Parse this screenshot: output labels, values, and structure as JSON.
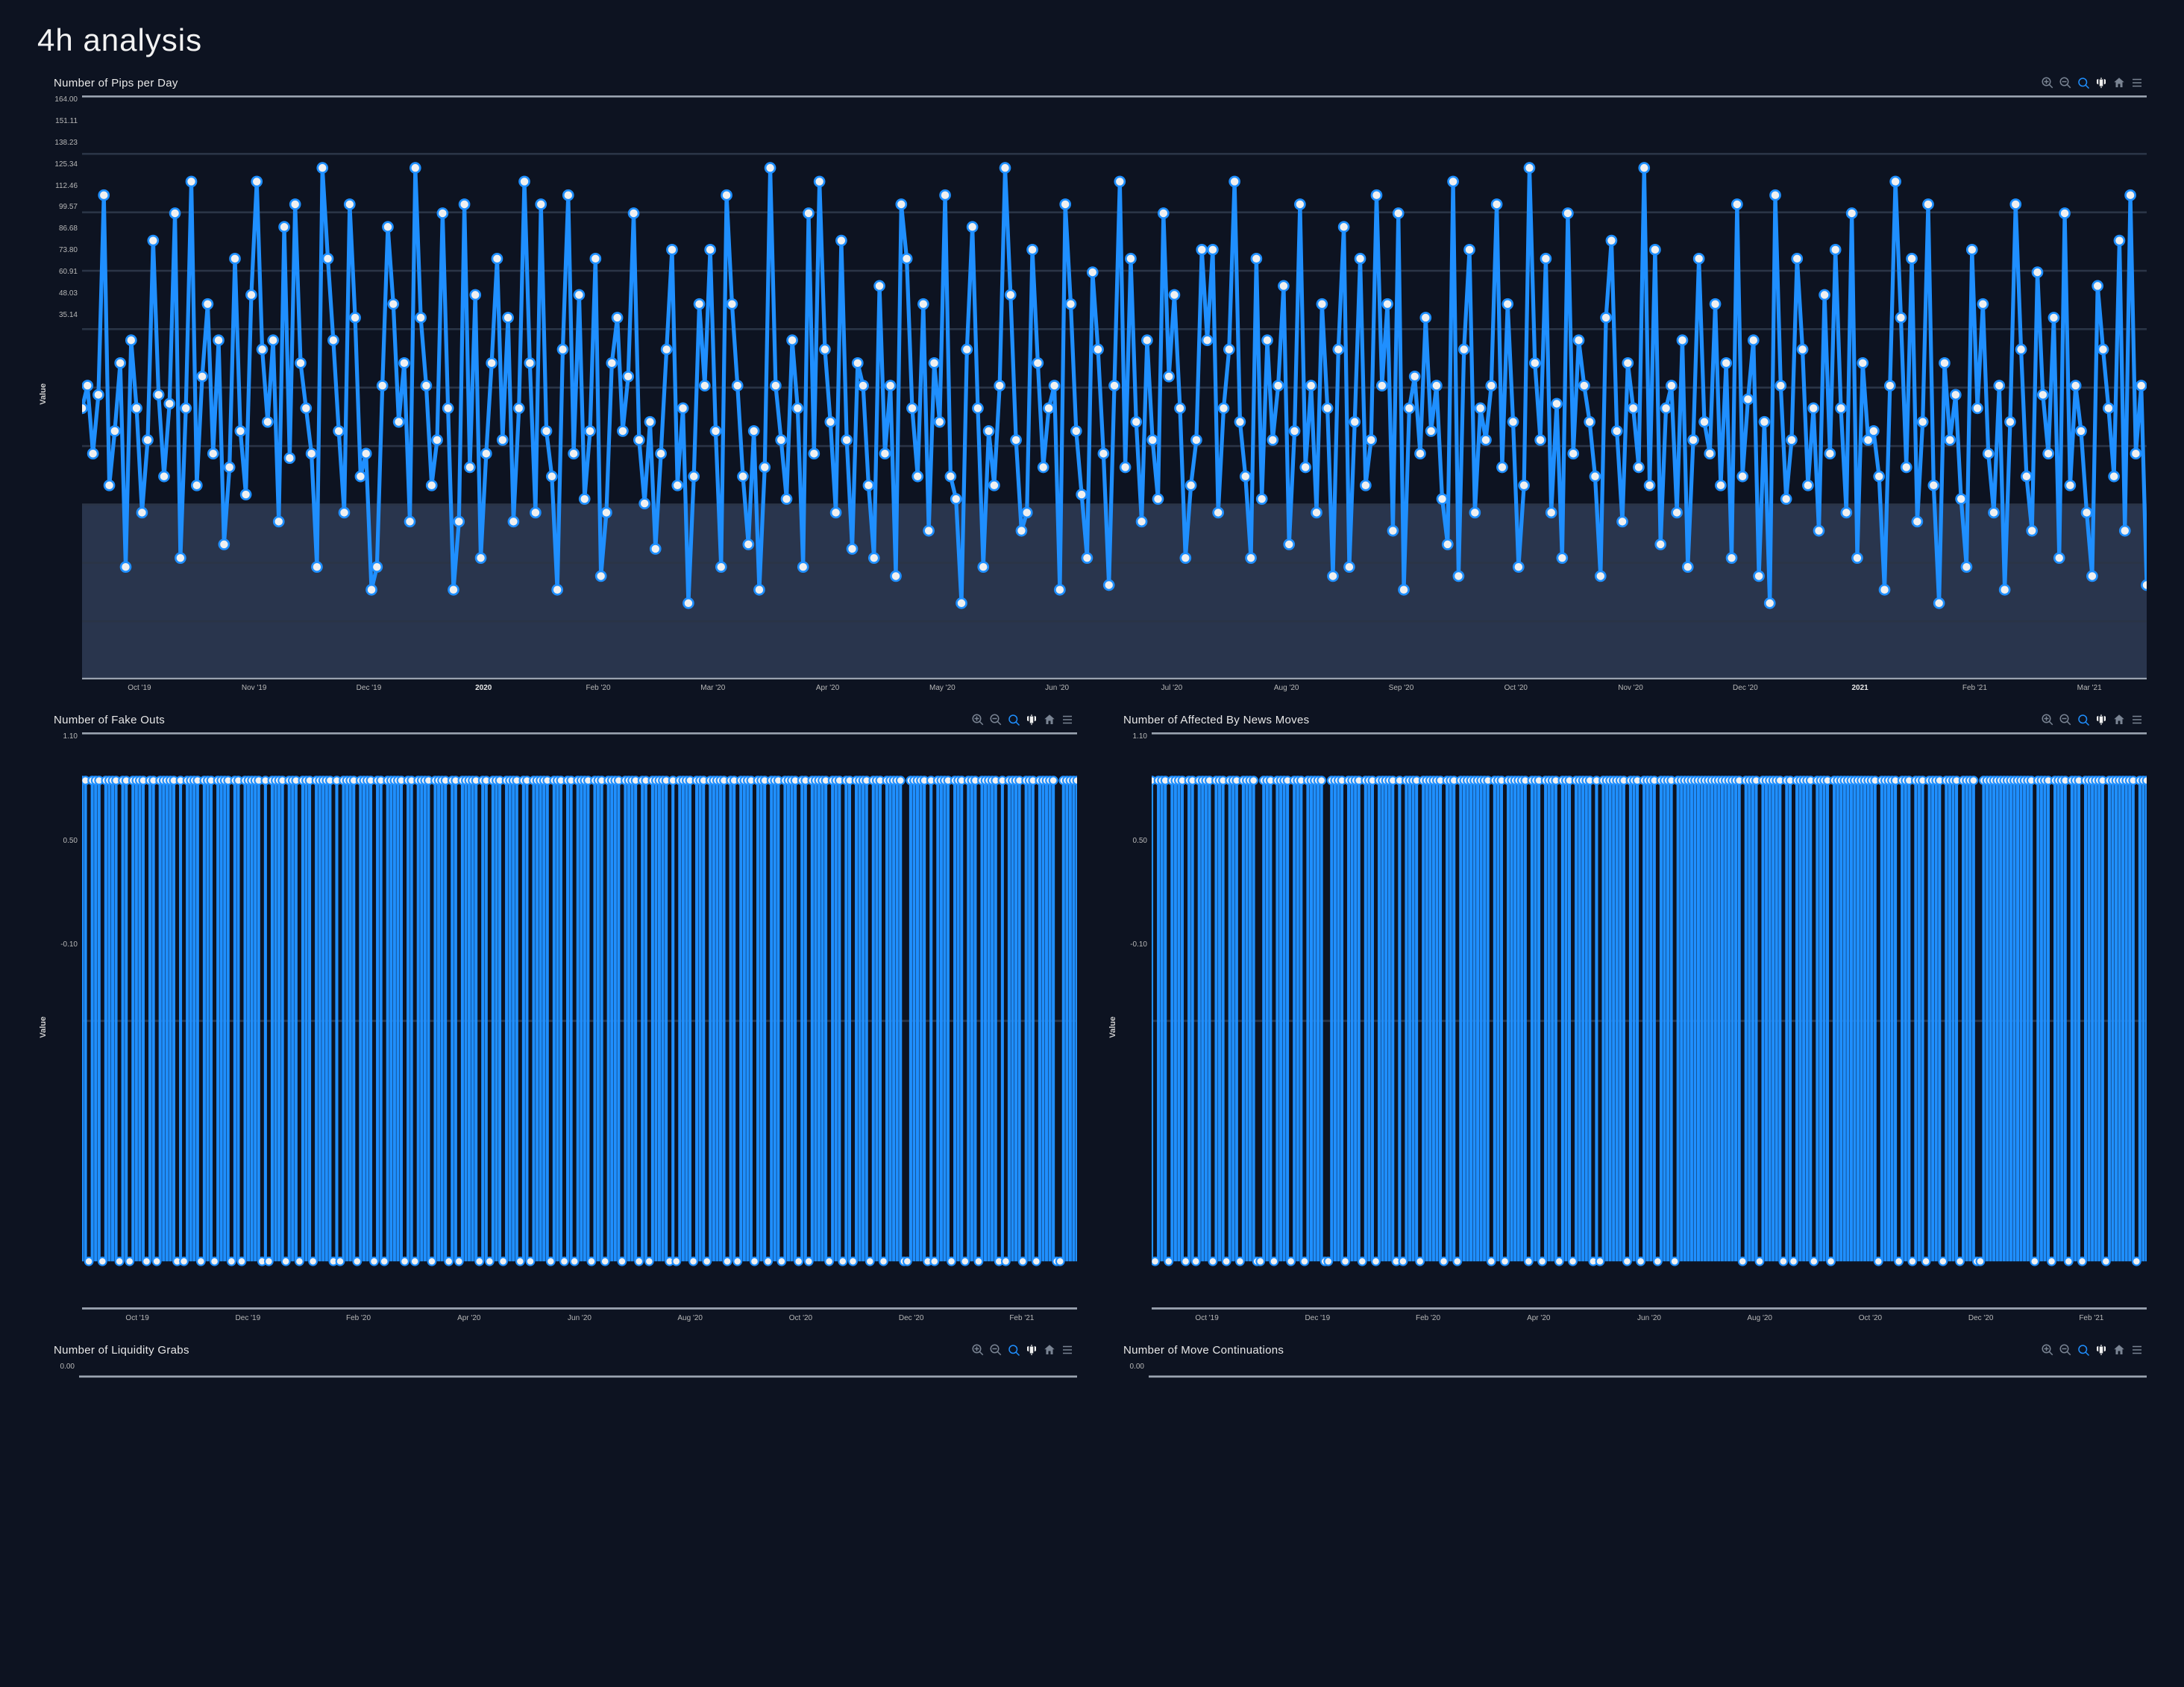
{
  "page": {
    "title": "4h analysis"
  },
  "colors": {
    "background": "#0d1321",
    "series": "#1f8fff",
    "marker_fill": "#f0f0f0",
    "marker_stroke": "#1f8fff",
    "grid": "#2a3446",
    "text": "#e0e0e0",
    "muted": "#7a8493",
    "band": "#2c3a52",
    "axis": "#9aa3b0"
  },
  "toolbar_icons": [
    "zoom-in",
    "zoom-out",
    "zoom-area",
    "pan",
    "home",
    "menu"
  ],
  "chart1": {
    "title": "Number of Pips per Day",
    "type": "line-markers",
    "ylabel": "Value",
    "ylim": [
      35.14,
      164.0
    ],
    "yticks": [
      "164.00",
      "151.11",
      "138.23",
      "125.34",
      "112.46",
      "99.57",
      "86.68",
      "73.80",
      "60.91",
      "48.03",
      "35.14"
    ],
    "xticks": [
      "Oct '19",
      "Nov '19",
      "Dec '19",
      "2020",
      "Feb '20",
      "Mar '20",
      "Apr '20",
      "May '20",
      "Jun '20",
      "Jul '20",
      "Aug '20",
      "Sep '20",
      "Oct '20",
      "Nov '20",
      "Dec '20",
      "2021",
      "Feb '21",
      "Mar '21"
    ],
    "xticks_bold": [
      3,
      15
    ],
    "area_band_top": 73.8,
    "line_width": 2,
    "marker_radius": 2.5,
    "values": [
      95,
      100,
      85,
      98,
      142,
      78,
      90,
      105,
      60,
      110,
      95,
      72,
      88,
      132,
      98,
      80,
      96,
      138,
      62,
      95,
      145,
      78,
      102,
      118,
      85,
      110,
      65,
      82,
      128,
      90,
      76,
      120,
      145,
      108,
      92,
      110,
      70,
      135,
      84,
      140,
      105,
      95,
      85,
      60,
      148,
      128,
      110,
      90,
      72,
      140,
      115,
      80,
      85,
      55,
      60,
      100,
      135,
      118,
      92,
      105,
      70,
      148,
      115,
      100,
      78,
      88,
      138,
      95,
      55,
      70,
      140,
      82,
      120,
      62,
      85,
      105,
      128,
      88,
      115,
      70,
      95,
      145,
      105,
      72,
      140,
      90,
      80,
      55,
      108,
      142,
      85,
      120,
      75,
      90,
      128,
      58,
      72,
      105,
      115,
      90,
      102,
      138,
      88,
      74,
      92,
      64,
      85,
      108,
      130,
      78,
      95,
      52,
      80,
      118,
      100,
      130,
      90,
      60,
      142,
      118,
      100,
      80,
      65,
      90,
      55,
      82,
      148,
      100,
      88,
      75,
      110,
      95,
      60,
      138,
      85,
      145,
      108,
      92,
      72,
      132,
      88,
      64,
      105,
      100,
      78,
      62,
      122,
      85,
      100,
      58,
      140,
      128,
      95,
      80,
      118,
      68,
      105,
      92,
      142,
      80,
      75,
      52,
      108,
      135,
      95,
      60,
      90,
      78,
      100,
      148,
      120,
      88,
      68,
      72,
      130,
      105,
      82,
      95,
      100,
      55,
      140,
      118,
      90,
      76,
      62,
      125,
      108,
      85,
      56,
      100,
      145,
      82,
      128,
      92,
      70,
      110,
      88,
      75,
      138,
      102,
      120,
      95,
      62,
      78,
      88,
      130,
      110,
      130,
      72,
      95,
      108,
      145,
      92,
      80,
      62,
      128,
      75,
      110,
      88,
      100,
      122,
      65,
      90,
      140,
      82,
      100,
      72,
      118,
      95,
      58,
      108,
      135,
      60,
      92,
      128,
      78,
      88,
      142,
      100,
      118,
      68,
      138,
      55,
      95,
      102,
      85,
      115,
      90,
      100,
      75,
      65,
      145,
      58,
      108,
      130,
      72,
      95,
      88,
      100,
      140,
      82,
      118,
      92,
      60,
      78,
      148,
      105,
      88,
      128,
      72,
      96,
      62,
      138,
      85,
      110,
      100,
      92,
      80,
      58,
      115,
      132,
      90,
      70,
      105,
      95,
      82,
      148,
      78,
      130,
      65,
      95,
      100,
      72,
      110,
      60,
      88,
      128,
      92,
      85,
      118,
      78,
      105,
      62,
      140,
      80,
      97,
      110,
      58,
      92,
      52,
      142,
      100,
      75,
      88,
      128,
      108,
      78,
      95,
      68,
      120,
      85,
      130,
      95,
      72,
      138,
      62,
      105,
      88,
      90,
      80,
      55,
      100,
      145,
      115,
      82,
      128,
      70,
      92,
      140,
      78,
      52,
      105,
      88,
      98,
      75,
      60,
      130,
      95,
      118,
      85,
      72,
      100,
      55,
      92,
      140,
      108,
      80,
      68,
      125,
      98,
      85,
      115,
      62,
      138,
      78,
      100,
      90,
      72,
      58,
      122,
      108,
      95,
      80,
      132,
      68,
      142,
      85,
      100,
      56
    ]
  },
  "chart2": {
    "title": "Number of Fake Outs",
    "type": "bar-binary",
    "ylabel": "Value",
    "ylim": [
      -0.1,
      1.1
    ],
    "yticks": [
      "1.10",
      "0.50",
      "-0.10"
    ],
    "xticks": [
      "Oct '19",
      "Dec '19",
      "Feb '20",
      "Apr '20",
      "Jun '20",
      "Aug '20",
      "Oct '20",
      "Dec '20",
      "Feb '21"
    ],
    "line_width": 2,
    "marker_radius": 2,
    "values": [
      1,
      1,
      0,
      1,
      1,
      1,
      0,
      1,
      1,
      1,
      1,
      0,
      1,
      1,
      0,
      1,
      1,
      1,
      1,
      0,
      1,
      1,
      0,
      1,
      1,
      1,
      1,
      1,
      0,
      1,
      0,
      1,
      1,
      1,
      1,
      0,
      1,
      1,
      1,
      0,
      1,
      1,
      1,
      1,
      0,
      1,
      1,
      0,
      1,
      1,
      1,
      1,
      1,
      0,
      1,
      0,
      1,
      1,
      1,
      1,
      0,
      1,
      1,
      1,
      0,
      1,
      1,
      1,
      0,
      1,
      1,
      1,
      1,
      1,
      0,
      1,
      0,
      1,
      1,
      1,
      1,
      0,
      1,
      1,
      1,
      1,
      0,
      1,
      1,
      0,
      1,
      1,
      1,
      1,
      1,
      0,
      1,
      1,
      0,
      1,
      1,
      1,
      1,
      0,
      1,
      1,
      1,
      1,
      0,
      1,
      1,
      0,
      1,
      1,
      1,
      1,
      1,
      0,
      1,
      1,
      0,
      1,
      1,
      1,
      0,
      1,
      1,
      1,
      1,
      0,
      1,
      1,
      0,
      1,
      1,
      1,
      1,
      1,
      0,
      1,
      1,
      1,
      0,
      1,
      1,
      0,
      1,
      1,
      1,
      1,
      0,
      1,
      1,
      1,
      0,
      1,
      1,
      1,
      1,
      0,
      1,
      1,
      1,
      1,
      0,
      1,
      1,
      0,
      1,
      1,
      1,
      1,
      1,
      0,
      1,
      0,
      1,
      1,
      1,
      1,
      0,
      1,
      1,
      1,
      0,
      1,
      1,
      1,
      1,
      1,
      0,
      1,
      1,
      0,
      1,
      1,
      1,
      1,
      0,
      1,
      1,
      1,
      0,
      1,
      1,
      1,
      0,
      1,
      1,
      1,
      1,
      0,
      1,
      1,
      0,
      1,
      1,
      1,
      1,
      1,
      0,
      1,
      1,
      1,
      0,
      1,
      1,
      0,
      1,
      1,
      1,
      1,
      0,
      1,
      1,
      1,
      0,
      1,
      1,
      1,
      1,
      1,
      0,
      0,
      1,
      1,
      1,
      1,
      1,
      0,
      1,
      0,
      1,
      1,
      1,
      1,
      0,
      1,
      1,
      1,
      0,
      1,
      1,
      1,
      0,
      1,
      1,
      1,
      1,
      1,
      0,
      1,
      0,
      1,
      1,
      1,
      1,
      0,
      1,
      1,
      1,
      0,
      1,
      1,
      1,
      1,
      1,
      0,
      0,
      1,
      1,
      1,
      1,
      1
    ]
  },
  "chart3": {
    "title": "Number of Affected By News Moves",
    "type": "bar-binary",
    "ylabel": "Value",
    "ylim": [
      -0.1,
      1.1
    ],
    "yticks": [
      "1.10",
      "0.50",
      "-0.10"
    ],
    "xticks": [
      "Oct '19",
      "Dec '19",
      "Feb '20",
      "Apr '20",
      "Jun '20",
      "Aug '20",
      "Oct '20",
      "Dec '20",
      "Feb '21"
    ],
    "line_width": 2,
    "marker_radius": 2,
    "values": [
      1,
      0,
      1,
      1,
      1,
      0,
      1,
      1,
      1,
      1,
      0,
      1,
      1,
      0,
      1,
      1,
      1,
      1,
      0,
      1,
      1,
      1,
      0,
      1,
      1,
      1,
      0,
      1,
      1,
      1,
      1,
      0,
      0,
      1,
      1,
      1,
      0,
      1,
      1,
      1,
      1,
      0,
      1,
      1,
      1,
      0,
      1,
      1,
      1,
      1,
      1,
      0,
      0,
      1,
      1,
      1,
      1,
      0,
      1,
      1,
      1,
      1,
      0,
      1,
      1,
      1,
      0,
      1,
      1,
      1,
      1,
      1,
      0,
      1,
      0,
      1,
      1,
      1,
      1,
      0,
      1,
      1,
      1,
      1,
      1,
      1,
      0,
      1,
      1,
      1,
      0,
      1,
      1,
      1,
      1,
      1,
      1,
      1,
      1,
      1,
      0,
      1,
      1,
      1,
      0,
      1,
      1,
      1,
      1,
      1,
      1,
      0,
      1,
      1,
      1,
      0,
      1,
      1,
      1,
      1,
      0,
      1,
      1,
      1,
      0,
      1,
      1,
      1,
      1,
      1,
      0,
      1,
      0,
      1,
      1,
      1,
      1,
      1,
      1,
      1,
      0,
      1,
      1,
      1,
      0,
      1,
      1,
      1,
      1,
      0,
      1,
      1,
      1,
      1,
      0,
      1,
      1,
      1,
      1,
      1,
      1,
      1,
      1,
      1,
      1,
      1,
      1,
      1,
      1,
      1,
      1,
      1,
      1,
      1,
      0,
      1,
      1,
      1,
      1,
      0,
      1,
      1,
      1,
      1,
      1,
      1,
      0,
      1,
      1,
      0,
      1,
      1,
      1,
      1,
      1,
      0,
      1,
      1,
      1,
      1,
      0,
      1,
      1,
      1,
      1,
      1,
      1,
      1,
      1,
      1,
      1,
      1,
      1,
      1,
      0,
      1,
      1,
      1,
      1,
      1,
      0,
      1,
      1,
      1,
      0,
      1,
      1,
      1,
      0,
      1,
      1,
      1,
      1,
      0,
      1,
      1,
      1,
      1,
      0,
      1,
      1,
      1,
      1,
      0,
      0,
      1,
      1,
      1,
      1,
      1,
      1,
      1,
      1,
      1,
      1,
      1,
      1,
      1,
      1,
      1,
      0,
      1,
      1,
      1,
      1,
      0,
      1,
      1,
      1,
      1,
      0,
      1,
      1,
      1,
      0,
      1,
      1,
      1,
      1,
      1,
      1,
      0,
      1,
      1,
      1,
      1,
      1,
      1,
      1,
      1,
      0,
      1,
      1,
      1
    ]
  },
  "chart4": {
    "title": "Number of Liquidity Grabs",
    "type": "line-markers",
    "ylabel": "Value",
    "yticks": [
      "0.00"
    ],
    "partial": true
  },
  "chart5": {
    "title": "Number of Move Continuations",
    "type": "line-markers",
    "ylabel": "Value",
    "yticks": [
      "0.00"
    ],
    "partial": true
  }
}
